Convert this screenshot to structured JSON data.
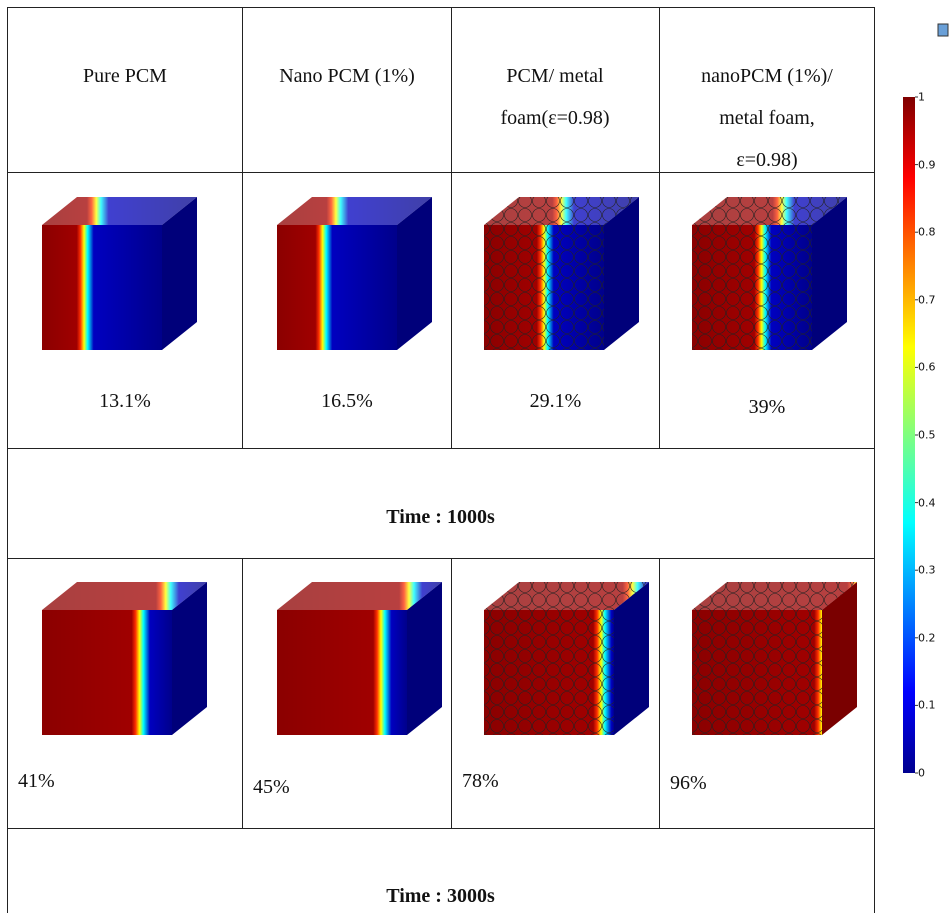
{
  "table": {
    "header": [
      "Pure PCM",
      "Nano PCM (1%)",
      "PCM/ metal foam(ε=0.98)",
      "nanoPCM (1%)/ metal foam, ε=0.98)"
    ],
    "rows": [
      {
        "values": [
          "13.1%",
          "16.5%",
          "29.1%",
          "39%"
        ],
        "time": "Time : 1000s"
      },
      {
        "values": [
          "41%",
          "45%",
          "78%",
          "96%"
        ],
        "time": "Time : 3000s"
      }
    ]
  },
  "colorbar": {
    "ticks": [
      0,
      0.1,
      0.2,
      0.3,
      0.4,
      0.5,
      0.6,
      0.7,
      0.8,
      0.9,
      1
    ]
  }
}
